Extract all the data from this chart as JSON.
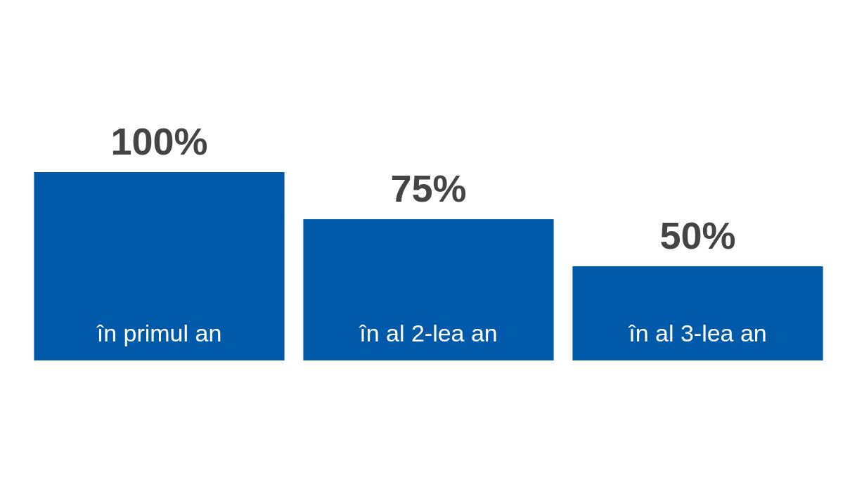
{
  "chart_data": {
    "type": "bar",
    "categories": [
      "în primul an",
      "în al 2-lea an",
      "în al 3-lea an"
    ],
    "values": [
      100,
      75,
      50
    ],
    "value_labels": [
      "100%",
      "75%",
      "50%"
    ],
    "color": "#005aa9"
  }
}
